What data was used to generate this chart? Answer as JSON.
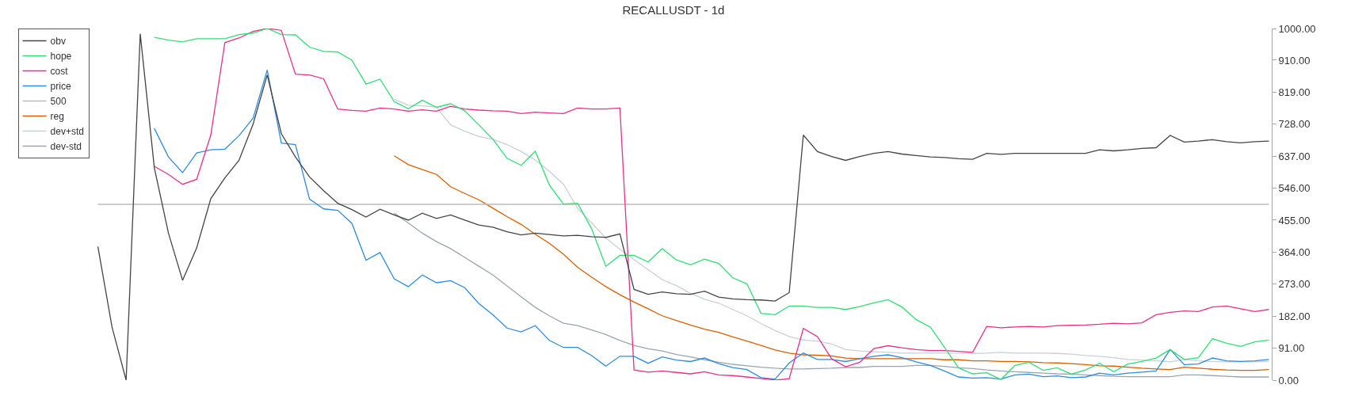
{
  "chart_data": {
    "type": "line",
    "title": "RECALLUSDT - 1d",
    "categories": [
      null,
      null,
      null,
      null,
      null,
      null,
      null,
      null,
      null,
      null,
      null,
      null,
      null,
      null,
      null,
      null,
      null,
      null,
      null,
      null,
      null,
      null,
      null,
      null,
      null,
      null,
      null,
      null,
      null,
      null,
      null,
      null,
      null,
      null,
      null,
      null,
      null,
      null,
      null,
      null,
      null,
      null,
      null,
      null,
      null,
      null,
      null,
      null,
      null,
      null,
      null,
      null,
      null,
      null,
      null,
      null,
      null,
      null,
      null,
      null,
      null,
      null,
      null,
      null,
      null,
      null,
      null,
      null,
      null,
      null,
      null,
      null,
      null,
      null,
      null,
      null,
      null,
      null,
      null,
      null,
      null,
      null,
      null,
      null
    ],
    "series": [
      {
        "name": "obv",
        "color": "#444444",
        "values": [
          380,
          151,
          0,
          985,
          604,
          418,
          284,
          376,
          516,
          575,
          625,
          728,
          868,
          701,
          635,
          578,
          539,
          503,
          485,
          464,
          486,
          470,
          455,
          475,
          460,
          470,
          455,
          441,
          435,
          422,
          413,
          418,
          414,
          410,
          412,
          408,
          406,
          416,
          258,
          244,
          251,
          246,
          244,
          253,
          236,
          231,
          229,
          228,
          225,
          249,
          697,
          650,
          636,
          625,
          636,
          645,
          650,
          643,
          639,
          635,
          633,
          630,
          628,
          645,
          642,
          645,
          645,
          645,
          645,
          645,
          645,
          655,
          652,
          655,
          659,
          661,
          696,
          677,
          680,
          684,
          678,
          675,
          678,
          680
        ]
      },
      {
        "name": "hope",
        "color": "#33dd77",
        "values": [
          null,
          null,
          null,
          null,
          975,
          967,
          962,
          971,
          971,
          971,
          983,
          987,
          1000,
          983,
          982,
          947,
          935,
          933,
          910,
          842,
          856,
          792,
          772,
          796,
          776,
          786,
          766,
          726,
          685,
          631,
          611,
          651,
          555,
          501,
          503,
          430,
          324,
          355,
          355,
          336,
          374,
          342,
          328,
          344,
          332,
          291,
          274,
          190,
          186,
          211,
          211,
          207,
          207,
          201,
          209,
          220,
          229,
          208,
          172,
          151,
          94,
          35,
          18,
          21,
          2,
          42,
          51,
          28,
          35,
          17,
          29,
          48,
          24,
          46,
          53,
          63,
          87,
          59,
          64,
          118,
          105,
          96,
          109,
          114
        ]
      },
      {
        "name": "cost",
        "color": "#e8308a",
        "values": [
          null,
          null,
          null,
          null,
          608,
          585,
          557,
          571,
          697,
          960,
          973,
          992,
          1000,
          995,
          870,
          868,
          857,
          771,
          767,
          765,
          774,
          771,
          765,
          769,
          765,
          779,
          771,
          768,
          766,
          765,
          758,
          762,
          760,
          758,
          774,
          771,
          771,
          774,
          29,
          23,
          26,
          22,
          18,
          24,
          15,
          13,
          9,
          5,
          0,
          4,
          147,
          124,
          61,
          38,
          51,
          90,
          98,
          92,
          87,
          84,
          84,
          82,
          79,
          153,
          149,
          151,
          153,
          151,
          155,
          156,
          157,
          159,
          162,
          160,
          163,
          186,
          193,
          197,
          195,
          208,
          211,
          203,
          195,
          201
        ]
      },
      {
        "name": "price",
        "color": "#2f8be0",
        "values": [
          null,
          null,
          null,
          null,
          716,
          635,
          590,
          646,
          655,
          657,
          695,
          745,
          882,
          674,
          670,
          515,
          487,
          483,
          446,
          341,
          363,
          288,
          266,
          299,
          277,
          283,
          263,
          218,
          186,
          148,
          137,
          155,
          113,
          93,
          93,
          70,
          40,
          68,
          68,
          48,
          66,
          57,
          53,
          63,
          47,
          36,
          30,
          7,
          3,
          49,
          77,
          59,
          59,
          53,
          61,
          68,
          72,
          64,
          52,
          42,
          26,
          9,
          6,
          7,
          3,
          15,
          17,
          10,
          12,
          7,
          9,
          20,
          15,
          20,
          23,
          26,
          87,
          44,
          46,
          63,
          55,
          53,
          55,
          59
        ]
      },
      {
        "name": "500",
        "color": "#bbbbbb",
        "values": [
          500,
          500,
          500,
          500,
          500,
          500,
          500,
          500,
          500,
          500,
          500,
          500,
          500,
          500,
          500,
          500,
          500,
          500,
          500,
          500,
          500,
          500,
          500,
          500,
          500,
          500,
          500,
          500,
          500,
          500,
          500,
          500,
          500,
          500,
          500,
          500,
          500,
          500,
          500,
          500,
          500,
          500,
          500,
          500,
          500,
          500,
          500,
          500,
          500,
          500,
          500,
          500,
          500,
          500,
          500,
          500,
          500,
          500,
          500,
          500,
          500,
          500,
          500,
          500,
          500,
          500,
          500,
          500,
          500,
          500,
          500,
          500,
          500,
          500,
          500,
          500,
          500,
          500,
          500,
          500,
          500,
          500,
          500,
          500
        ]
      },
      {
        "name": "reg",
        "color": "#d95f00",
        "values": [
          null,
          null,
          null,
          null,
          null,
          null,
          null,
          null,
          null,
          null,
          null,
          null,
          null,
          null,
          null,
          null,
          null,
          null,
          null,
          null,
          null,
          638,
          613,
          599,
          585,
          550,
          531,
          513,
          489,
          465,
          443,
          415,
          389,
          358,
          321,
          293,
          266,
          243,
          222,
          203,
          183,
          170,
          157,
          145,
          136,
          123,
          111,
          99,
          86,
          77,
          72,
          71,
          69,
          63,
          61,
          61,
          61,
          61,
          61,
          61,
          58,
          58,
          55,
          55,
          53,
          53,
          52,
          50,
          49,
          47,
          44,
          41,
          40,
          37,
          34,
          32,
          30,
          37,
          34,
          31,
          29,
          28,
          28,
          30
        ]
      },
      {
        "name": "dev+std",
        "color": "#c8d0d8",
        "values": [
          null,
          null,
          null,
          null,
          null,
          null,
          null,
          null,
          null,
          null,
          null,
          null,
          null,
          null,
          null,
          null,
          null,
          null,
          null,
          null,
          null,
          799,
          782,
          780,
          776,
          726,
          708,
          693,
          685,
          670,
          650,
          626,
          594,
          557,
          489,
          447,
          404,
          372,
          343,
          314,
          286,
          269,
          247,
          230,
          219,
          201,
          183,
          161,
          141,
          124,
          114,
          111,
          103,
          87,
          83,
          81,
          79,
          77,
          77,
          77,
          77,
          77,
          76,
          77,
          79,
          77,
          77,
          77,
          76,
          74,
          70,
          68,
          64,
          59,
          57,
          55,
          52,
          59,
          55,
          53,
          52,
          52,
          52,
          53
        ]
      },
      {
        "name": "dev-std",
        "color": "#9aa5b0",
        "values": [
          null,
          null,
          null,
          null,
          null,
          null,
          null,
          null,
          null,
          null,
          null,
          null,
          null,
          null,
          null,
          null,
          null,
          null,
          null,
          null,
          null,
          475,
          447,
          418,
          394,
          374,
          349,
          324,
          299,
          268,
          237,
          207,
          183,
          162,
          155,
          143,
          130,
          113,
          99,
          89,
          83,
          73,
          66,
          58,
          51,
          45,
          41,
          37,
          34,
          32,
          32,
          33,
          34,
          36,
          36,
          39,
          39,
          39,
          42,
          42,
          39,
          35,
          33,
          29,
          26,
          24,
          22,
          20,
          18,
          17,
          15,
          13,
          11,
          10,
          10,
          10,
          10,
          15,
          15,
          13,
          11,
          9,
          9,
          9
        ]
      }
    ],
    "ylim": [
      0,
      1000
    ],
    "yticks": [
      {
        "value": 0,
        "label": "0.00"
      },
      {
        "value": 91,
        "label": "91.00"
      },
      {
        "value": 182,
        "label": "182.00"
      },
      {
        "value": 273,
        "label": "273.00"
      },
      {
        "value": 364,
        "label": "364.00"
      },
      {
        "value": 455,
        "label": "455.00"
      },
      {
        "value": 546,
        "label": "546.00"
      },
      {
        "value": 637,
        "label": "637.00"
      },
      {
        "value": 728,
        "label": "728.00"
      },
      {
        "value": 819,
        "label": "819.00"
      },
      {
        "value": 910,
        "label": "910.00"
      },
      {
        "value": 1000,
        "label": "1000.00"
      }
    ],
    "legend": "top left",
    "tick_labels": "y",
    "marker": "none"
  }
}
